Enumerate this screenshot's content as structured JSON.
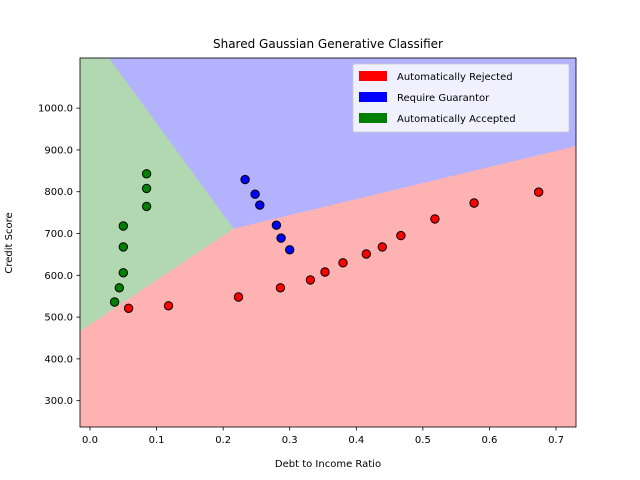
{
  "chart_data": {
    "type": "scatter",
    "title": "Shared Gaussian Generative Classifier",
    "xlabel": "Debt to Income Ratio",
    "ylabel": "Credit Score",
    "xlim": [
      -0.015,
      0.73
    ],
    "ylim": [
      237,
      1120
    ],
    "xticks": [
      0.0,
      0.1,
      0.2,
      0.3,
      0.4,
      0.5,
      0.6,
      0.7
    ],
    "xtick_labels": [
      "0.0",
      "0.1",
      "0.2",
      "0.3",
      "0.4",
      "0.5",
      "0.6",
      "0.7"
    ],
    "yticks": [
      300,
      400,
      500,
      600,
      700,
      800,
      900,
      1000
    ],
    "ytick_labels": [
      "300.0",
      "400.0",
      "500.0",
      "600.0",
      "700.0",
      "800.0",
      "900.0",
      "1000.0"
    ],
    "grid": false,
    "legend_position": "top-right",
    "regions": [
      {
        "name": "Automatically Rejected",
        "fill": "#ffb2b2",
        "polygon": [
          [
            -0.015,
            237
          ],
          [
            0.73,
            237
          ],
          [
            0.73,
            910
          ],
          [
            0.215,
            712
          ],
          [
            -0.015,
            467
          ]
        ]
      },
      {
        "name": "Require Guarantor",
        "fill": "#b2b2ff",
        "polygon": [
          [
            0.028,
            1120
          ],
          [
            0.73,
            1120
          ],
          [
            0.73,
            910
          ],
          [
            0.215,
            712
          ]
        ]
      },
      {
        "name": "Automatically Accepted",
        "fill": "#b2d8b2",
        "polygon": [
          [
            -0.015,
            1120
          ],
          [
            0.028,
            1120
          ],
          [
            0.215,
            712
          ],
          [
            -0.015,
            467
          ]
        ]
      }
    ],
    "series": [
      {
        "name": "Automatically Rejected",
        "color": "#ff0000",
        "points": [
          [
            0.058,
            521
          ],
          [
            0.118,
            527
          ],
          [
            0.223,
            548
          ],
          [
            0.286,
            570
          ],
          [
            0.331,
            589
          ],
          [
            0.353,
            608
          ],
          [
            0.38,
            630
          ],
          [
            0.415,
            651
          ],
          [
            0.439,
            668
          ],
          [
            0.467,
            695
          ],
          [
            0.518,
            735
          ],
          [
            0.577,
            773
          ],
          [
            0.674,
            799
          ]
        ]
      },
      {
        "name": "Require Guarantor",
        "color": "#0000ff",
        "points": [
          [
            0.233,
            829
          ],
          [
            0.248,
            794
          ],
          [
            0.255,
            768
          ],
          [
            0.28,
            720
          ],
          [
            0.287,
            689
          ],
          [
            0.3,
            661
          ]
        ]
      },
      {
        "name": "Automatically Accepted",
        "color": "#008000",
        "points": [
          [
            0.085,
            843
          ],
          [
            0.085,
            808
          ],
          [
            0.085,
            765
          ],
          [
            0.05,
            718
          ],
          [
            0.05,
            668
          ],
          [
            0.05,
            606
          ],
          [
            0.044,
            570
          ],
          [
            0.037,
            536
          ]
        ]
      }
    ]
  }
}
